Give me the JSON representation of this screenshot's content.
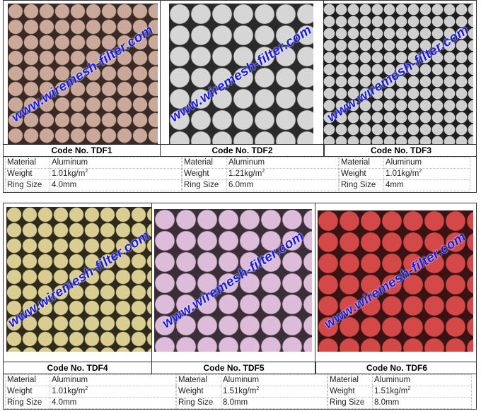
{
  "watermark": "www.wiremesh-filter.com",
  "spec_labels": {
    "material": "Material",
    "weight": "Weight",
    "ring_size": "Ring Size"
  },
  "products": [
    {
      "code": "Code No. TDF1",
      "material": "Aluminum",
      "weight": "1.01kg/m",
      "weight_sup": "2",
      "ring_size": "4.0mm",
      "color": "#caa99a",
      "gap": "#3a2a26"
    },
    {
      "code": "Code No. TDF2",
      "material": "Aluminum",
      "weight": "1.21kg/m",
      "weight_sup": "2",
      "ring_size": "6.0mm",
      "color": "#d6d6d6",
      "gap": "#2a2a2a"
    },
    {
      "code": "Code No. TDF3",
      "material": "Aluminum",
      "weight": "1.01kg/m",
      "weight_sup": "2",
      "ring_size": "4mm",
      "color": "#cfcfcf",
      "gap": "#1e1e1e"
    },
    {
      "code": "Code No. TDF4",
      "material": "Aluminum",
      "weight": "1.01kg/m",
      "weight_sup": "2",
      "ring_size": "4.0mm",
      "color": "#d9cd92",
      "gap": "#2e2a1c"
    },
    {
      "code": "Code No. TDF5",
      "material": "Aluminum",
      "weight": "1.51kg/m",
      "weight_sup": "2",
      "ring_size": "8.0mm",
      "color": "#dcbcd8",
      "gap": "#3a2e38"
    },
    {
      "code": "Code No. TDF6",
      "material": "Aluminum",
      "weight": "1.51kg/m",
      "weight_sup": "2",
      "ring_size": "8.0mm",
      "color": "#d54848",
      "gap": "#3a1414"
    }
  ]
}
